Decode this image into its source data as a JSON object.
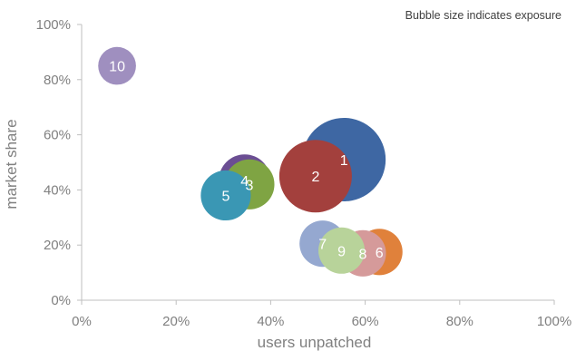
{
  "chart_data": {
    "type": "scatter",
    "subtype": "bubble",
    "note": "Bubble size indicates exposure",
    "xlabel": "users unpatched",
    "ylabel": "market share",
    "xlim": [
      0,
      100
    ],
    "ylim": [
      0,
      100
    ],
    "x_ticks": [
      "0%",
      "20%",
      "40%",
      "60%",
      "80%",
      "100%"
    ],
    "y_ticks": [
      "0%",
      "20%",
      "40%",
      "60%",
      "80%",
      "100%"
    ],
    "grid": false,
    "points": [
      {
        "label": "10",
        "x": 7.5,
        "y": 85,
        "size": 16,
        "color": "#9f8fbf"
      },
      {
        "label": "1",
        "x": 55.5,
        "y": 51,
        "size": 78,
        "color": "#3e67a3"
      },
      {
        "label": "3",
        "x": 35.5,
        "y": 42,
        "size": 28,
        "color": "#7fa443"
      },
      {
        "label": "4",
        "x": 34.5,
        "y": 43.5,
        "size": 30,
        "color": "#6b4e93"
      },
      {
        "label": "2",
        "x": 49.5,
        "y": 45,
        "size": 59,
        "color": "#a3403d"
      },
      {
        "label": "5",
        "x": 30.5,
        "y": 38,
        "size": 28,
        "color": "#3a97b4"
      },
      {
        "label": "6",
        "x": 63,
        "y": 17.5,
        "size": 24,
        "color": "#e0813b"
      },
      {
        "label": "7",
        "x": 51,
        "y": 20.5,
        "size": 24,
        "color": "#95a8d0"
      },
      {
        "label": "8",
        "x": 59.5,
        "y": 17,
        "size": 24,
        "color": "#d59a9a"
      },
      {
        "label": "9",
        "x": 55,
        "y": 18,
        "size": 24,
        "color": "#b8d39a"
      }
    ]
  }
}
